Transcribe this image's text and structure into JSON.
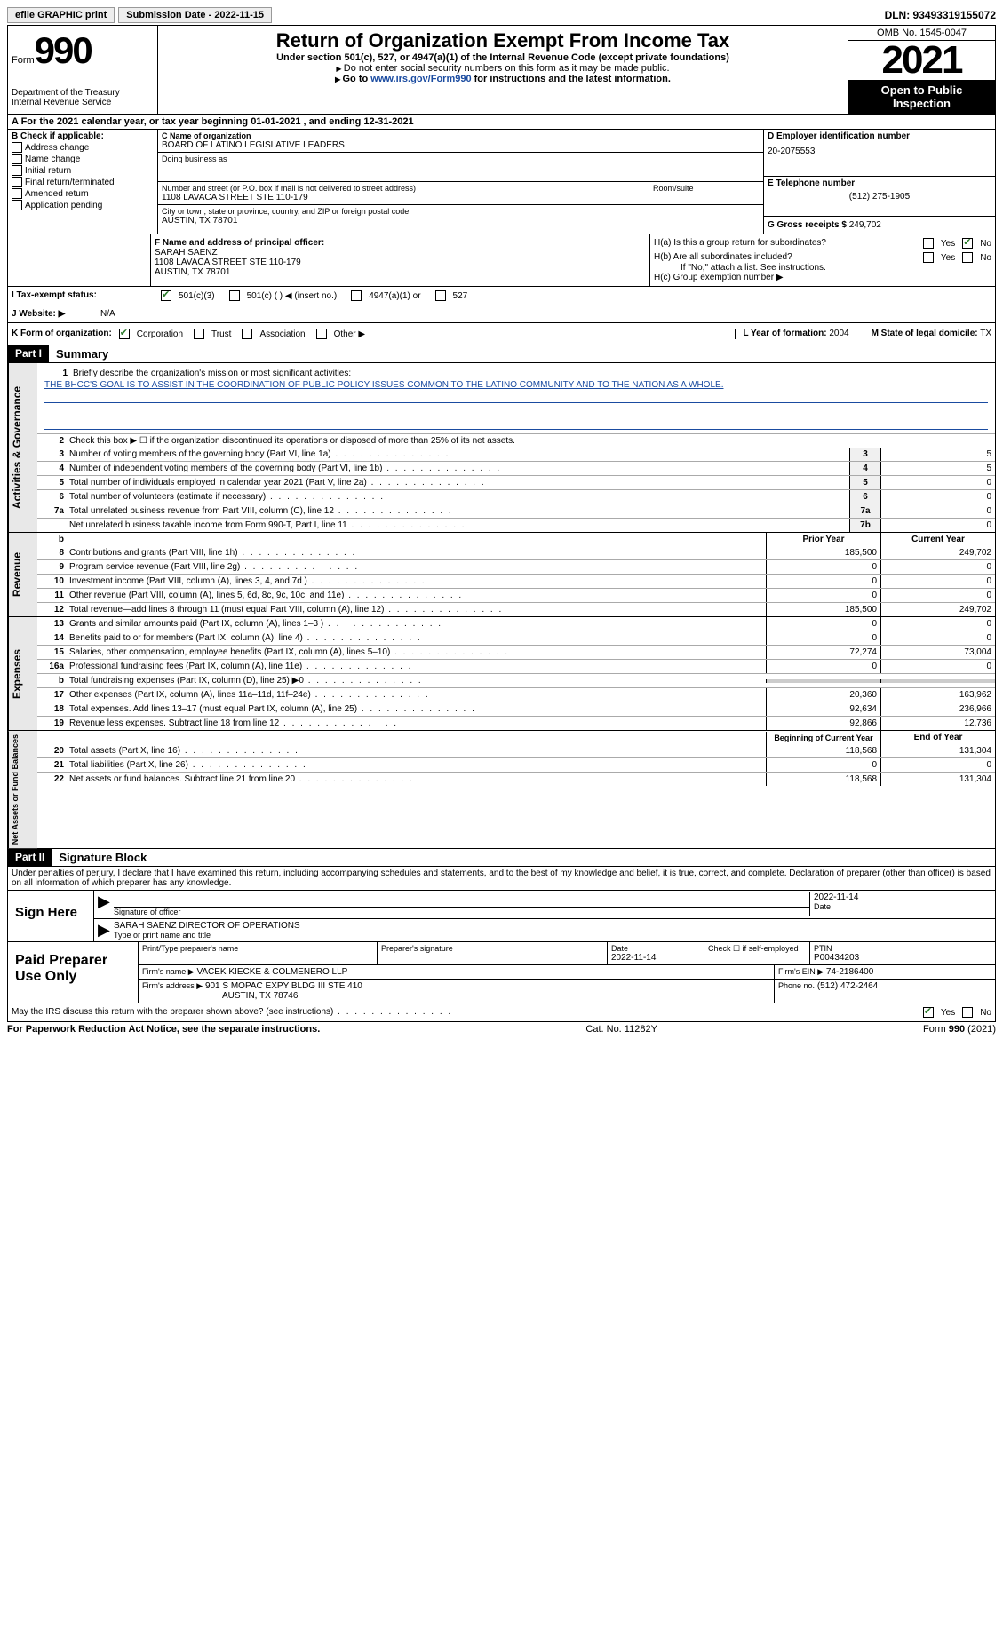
{
  "top": {
    "efile": "efile GRAPHIC print",
    "submission": "Submission Date - 2022-11-15",
    "dln": "DLN: 93493319155072"
  },
  "header": {
    "form_label": "Form",
    "form_num": "990",
    "dept": "Department of the Treasury",
    "irs": "Internal Revenue Service",
    "title": "Return of Organization Exempt From Income Tax",
    "sub1": "Under section 501(c), 527, or 4947(a)(1) of the Internal Revenue Code (except private foundations)",
    "sub2": "Do not enter social security numbers on this form as it may be made public.",
    "sub3_pre": "Go to ",
    "sub3_link": "www.irs.gov/Form990",
    "sub3_post": " for instructions and the latest information.",
    "omb": "OMB No. 1545-0047",
    "year": "2021",
    "inspect": "Open to Public Inspection"
  },
  "lineA": "A For the 2021 calendar year, or tax year beginning 01-01-2021   , and ending 12-31-2021",
  "colB": {
    "label": "B Check if applicable:",
    "items": [
      "Address change",
      "Name change",
      "Initial return",
      "Final return/terminated",
      "Amended return",
      "Application pending"
    ]
  },
  "colC": {
    "name_label": "C Name of organization",
    "name": "BOARD OF LATINO LEGISLATIVE LEADERS",
    "dba_label": "Doing business as",
    "dba": "",
    "addr_label": "Number and street (or P.O. box if mail is not delivered to street address)",
    "room_label": "Room/suite",
    "addr": "1108 LAVACA STREET STE 110-179",
    "city_label": "City or town, state or province, country, and ZIP or foreign postal code",
    "city": "AUSTIN, TX  78701"
  },
  "colD": {
    "ein_label": "D Employer identification number",
    "ein": "20-2075553",
    "phone_label": "E Telephone number",
    "phone": "(512) 275-1905",
    "gross_label": "G Gross receipts $",
    "gross": "249,702"
  },
  "rowF": {
    "label": "F Name and address of principal officer:",
    "name": "SARAH SAENZ",
    "addr": "1108 LAVACA STREET STE 110-179",
    "city": "AUSTIN, TX  78701"
  },
  "rowH": {
    "ha": "H(a)  Is this a group return for subordinates?",
    "hb": "H(b)  Are all subordinates included?",
    "hb_note": "If \"No,\" attach a list. See instructions.",
    "hc": "H(c)  Group exemption number ▶"
  },
  "taxStatus": {
    "label": "I  Tax-exempt status:",
    "opt1": "501(c)(3)",
    "opt2": "501(c) (  ) ◀ (insert no.)",
    "opt3": "4947(a)(1) or",
    "opt4": "527"
  },
  "website": {
    "label": "J  Website: ▶",
    "value": "N/A"
  },
  "formOrg": {
    "label": "K Form of organization:",
    "opts": [
      "Corporation",
      "Trust",
      "Association",
      "Other ▶"
    ],
    "year_label": "L Year of formation:",
    "year": "2004",
    "state_label": "M State of legal domicile:",
    "state": "TX"
  },
  "part1": {
    "header": "Part I",
    "title": "Summary",
    "line1_label": "Briefly describe the organization's mission or most significant activities:",
    "mission": "THE BHCC'S GOAL IS TO ASSIST IN THE COORDINATION OF PUBLIC POLICY ISSUES COMMON TO THE LATINO COMMUNITY AND TO THE NATION AS A WHOLE.",
    "line2": "Check this box ▶ ☐  if the organization discontinued its operations or disposed of more than 25% of its net assets.",
    "lines": [
      {
        "n": "3",
        "t": "Number of voting members of the governing body (Part VI, line 1a)",
        "box": "3",
        "v": "5"
      },
      {
        "n": "4",
        "t": "Number of independent voting members of the governing body (Part VI, line 1b)",
        "box": "4",
        "v": "5"
      },
      {
        "n": "5",
        "t": "Total number of individuals employed in calendar year 2021 (Part V, line 2a)",
        "box": "5",
        "v": "0"
      },
      {
        "n": "6",
        "t": "Total number of volunteers (estimate if necessary)",
        "box": "6",
        "v": "0"
      },
      {
        "n": "7a",
        "t": "Total unrelated business revenue from Part VIII, column (C), line 12",
        "box": "7a",
        "v": "0"
      },
      {
        "n": "",
        "t": "Net unrelated business taxable income from Form 990-T, Part I, line 11",
        "box": "7b",
        "v": "0"
      }
    ]
  },
  "revenue": {
    "header_prior": "Prior Year",
    "header_current": "Current Year",
    "lines": [
      {
        "n": "8",
        "t": "Contributions and grants (Part VIII, line 1h)",
        "p": "185,500",
        "c": "249,702"
      },
      {
        "n": "9",
        "t": "Program service revenue (Part VIII, line 2g)",
        "p": "0",
        "c": "0"
      },
      {
        "n": "10",
        "t": "Investment income (Part VIII, column (A), lines 3, 4, and 7d )",
        "p": "0",
        "c": "0"
      },
      {
        "n": "11",
        "t": "Other revenue (Part VIII, column (A), lines 5, 6d, 8c, 9c, 10c, and 11e)",
        "p": "0",
        "c": "0"
      },
      {
        "n": "12",
        "t": "Total revenue—add lines 8 through 11 (must equal Part VIII, column (A), line 12)",
        "p": "185,500",
        "c": "249,702"
      }
    ]
  },
  "expenses": {
    "lines": [
      {
        "n": "13",
        "t": "Grants and similar amounts paid (Part IX, column (A), lines 1–3 )",
        "p": "0",
        "c": "0"
      },
      {
        "n": "14",
        "t": "Benefits paid to or for members (Part IX, column (A), line 4)",
        "p": "0",
        "c": "0"
      },
      {
        "n": "15",
        "t": "Salaries, other compensation, employee benefits (Part IX, column (A), lines 5–10)",
        "p": "72,274",
        "c": "73,004"
      },
      {
        "n": "16a",
        "t": "Professional fundraising fees (Part IX, column (A), line 11e)",
        "p": "0",
        "c": "0"
      },
      {
        "n": "b",
        "t": "Total fundraising expenses (Part IX, column (D), line 25) ▶0",
        "p": "",
        "c": "",
        "gray": true
      },
      {
        "n": "17",
        "t": "Other expenses (Part IX, column (A), lines 11a–11d, 11f–24e)",
        "p": "20,360",
        "c": "163,962"
      },
      {
        "n": "18",
        "t": "Total expenses. Add lines 13–17 (must equal Part IX, column (A), line 25)",
        "p": "92,634",
        "c": "236,966"
      },
      {
        "n": "19",
        "t": "Revenue less expenses. Subtract line 18 from line 12",
        "p": "92,866",
        "c": "12,736"
      }
    ]
  },
  "netassets": {
    "header_begin": "Beginning of Current Year",
    "header_end": "End of Year",
    "lines": [
      {
        "n": "20",
        "t": "Total assets (Part X, line 16)",
        "p": "118,568",
        "c": "131,304"
      },
      {
        "n": "21",
        "t": "Total liabilities (Part X, line 26)",
        "p": "0",
        "c": "0"
      },
      {
        "n": "22",
        "t": "Net assets or fund balances. Subtract line 21 from line 20",
        "p": "118,568",
        "c": "131,304"
      }
    ]
  },
  "part2": {
    "header": "Part II",
    "title": "Signature Block",
    "penalty": "Under penalties of perjury, I declare that I have examined this return, including accompanying schedules and statements, and to the best of my knowledge and belief, it is true, correct, and complete. Declaration of preparer (other than officer) is based on all information of which preparer has any knowledge."
  },
  "sign": {
    "label": "Sign Here",
    "sig_label": "Signature of officer",
    "date": "2022-11-14",
    "date_label": "Date",
    "name": "SARAH SAENZ  DIRECTOR OF OPERATIONS",
    "name_label": "Type or print name and title"
  },
  "preparer": {
    "label": "Paid Preparer Use Only",
    "print_label": "Print/Type preparer's name",
    "sig_label": "Preparer's signature",
    "date_label": "Date",
    "date": "2022-11-14",
    "check_label": "Check ☐ if self-employed",
    "ptin_label": "PTIN",
    "ptin": "P00434203",
    "firm_name_label": "Firm's name    ▶",
    "firm_name": "VACEK KIECKE & COLMENERO LLP",
    "firm_ein_label": "Firm's EIN ▶",
    "firm_ein": "74-2186400",
    "firm_addr_label": "Firm's address ▶",
    "firm_addr": "901 S MOPAC EXPY BLDG III STE 410",
    "firm_city": "AUSTIN, TX  78746",
    "phone_label": "Phone no.",
    "phone": "(512) 472-2464"
  },
  "discuss": "May the IRS discuss this return with the preparer shown above? (see instructions)",
  "footer": {
    "left": "For Paperwork Reduction Act Notice, see the separate instructions.",
    "mid": "Cat. No. 11282Y",
    "right": "Form 990 (2021)"
  },
  "vert_labels": {
    "gov": "Activities & Governance",
    "rev": "Revenue",
    "exp": "Expenses",
    "net": "Net Assets or Fund Balances"
  }
}
